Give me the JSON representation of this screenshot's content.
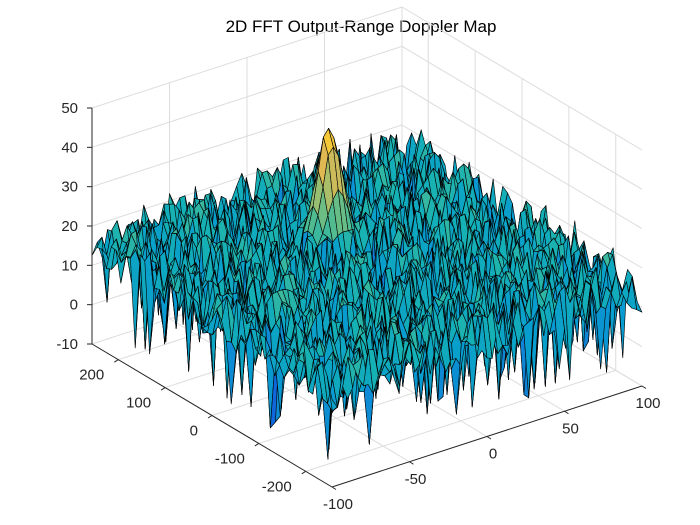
{
  "figure": {
    "title": "2D FFT Output-Range Doppler Map"
  },
  "chart_data": {
    "type": "surface",
    "title": "2D FFT Output-Range Doppler Map",
    "xlabel": "",
    "ylabel": "",
    "zlabel": "",
    "x_ticks": [
      "-100",
      "-50",
      "0",
      "50",
      "100"
    ],
    "y_ticks": [
      "-200",
      "-100",
      "0",
      "100",
      "200"
    ],
    "z_ticks": [
      "-10",
      "0",
      "10",
      "20",
      "30",
      "40",
      "50"
    ],
    "xlim": [
      -100,
      100
    ],
    "ylim": [
      -256,
      256
    ],
    "zlim": [
      -10,
      50
    ],
    "grid": true,
    "colormap": "parula",
    "edge_color": "#000000",
    "noise_floor_db": 15,
    "noise_min_db": -7,
    "noise_max_db": 25,
    "peak": {
      "x": 0,
      "y": 80,
      "z": 45
    },
    "colors": {
      "axis": "#262626",
      "grid": "#dcdcdc",
      "background": "#ffffff"
    }
  }
}
